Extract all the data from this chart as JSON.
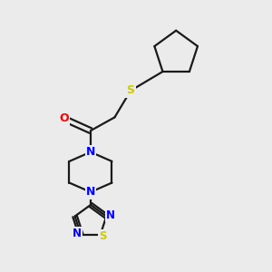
{
  "bg_color": "#ebebeb",
  "bond_color": "#1a1a1a",
  "N_color": "#0000ff",
  "O_color": "#ff0000",
  "S_color": "#cccc00",
  "line_width": 1.6,
  "fig_size": [
    3.0,
    3.0
  ],
  "dpi": 100,
  "xlim": [
    0,
    10
  ],
  "ylim": [
    0,
    10
  ]
}
